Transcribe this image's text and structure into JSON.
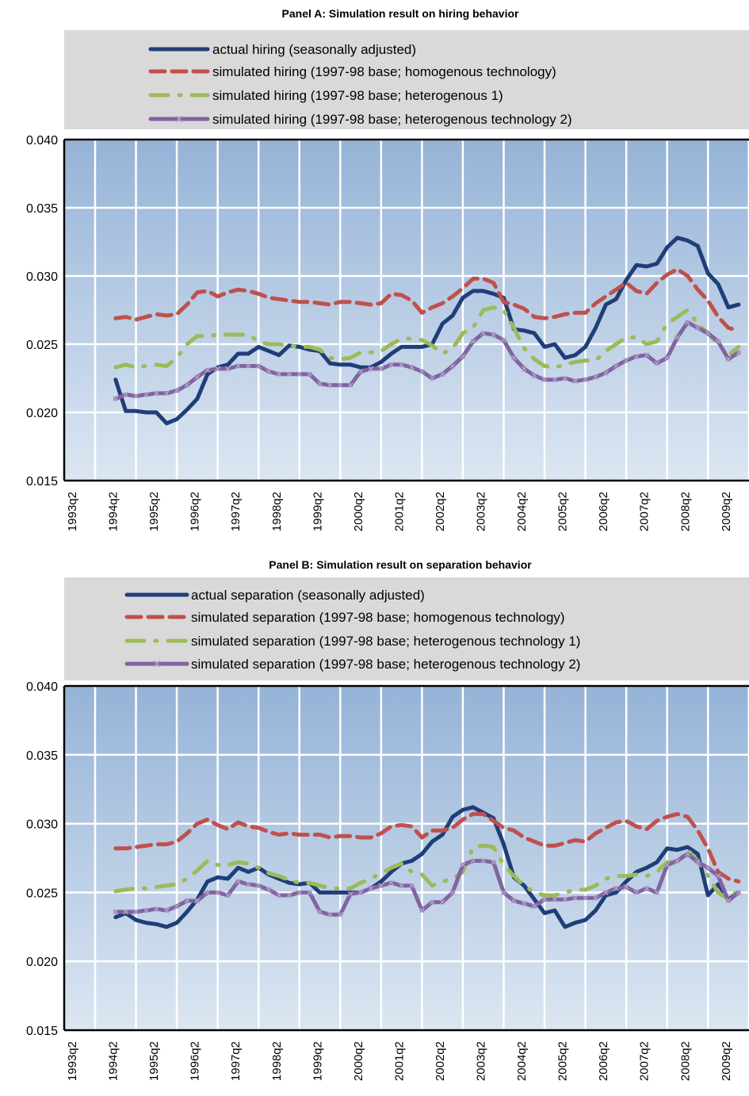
{
  "colors": {
    "actual": "#1f3e78",
    "homogenous": "#c0504d",
    "heterogenous1": "#9bbb59",
    "heterogenous2": "#8064a2",
    "legend_bg": "#d9d9d9",
    "plot_bg_top": "#95b3d7",
    "plot_bg_bottom": "#dce6f2"
  },
  "chart_data": [
    {
      "type": "line",
      "title": "Panel A: Simulation result on hiring behavior",
      "legend_position": "top",
      "grid": true,
      "ylim": [
        0.015,
        0.04
      ],
      "yticks": [
        "0.040",
        "0.035",
        "0.030",
        "0.025",
        "0.020",
        "0.015"
      ],
      "x_labels": [
        "1993q2",
        "1994q2",
        "1995q2",
        "1996q2",
        "1997q2",
        "1998q2",
        "1999q2",
        "2000q2",
        "2001q2",
        "2002q2",
        "2003q2",
        "2004q2",
        "2005q2",
        "2006q2",
        "2007q2",
        "2008q2",
        "2009q2"
      ],
      "x_start": "1993q4",
      "series": [
        {
          "name": "actual hiring (seasonally adjusted)",
          "style": "solid",
          "values": [
            0.0224,
            0.0201,
            0.0201,
            0.02,
            0.02,
            0.0192,
            0.0195,
            0.0202,
            0.021,
            0.0228,
            0.0233,
            0.0235,
            0.0243,
            0.0243,
            0.0248,
            0.0245,
            0.0242,
            0.0249,
            0.0248,
            0.0246,
            0.0245,
            0.0236,
            0.0235,
            0.0235,
            0.0233,
            0.0233,
            0.0237,
            0.0243,
            0.0248,
            0.0248,
            0.0248,
            0.025,
            0.0265,
            0.0271,
            0.0284,
            0.0289,
            0.0289,
            0.0287,
            0.0284,
            0.0261,
            0.026,
            0.0258,
            0.0248,
            0.025,
            0.024,
            0.0242,
            0.0248,
            0.0262,
            0.0279,
            0.0283,
            0.0297,
            0.0308,
            0.0307,
            0.0309,
            0.0321,
            0.0328,
            0.0326,
            0.0322,
            0.0302,
            0.0294,
            0.0277,
            0.0279
          ]
        },
        {
          "name": "simulated hiring (1997-98 base; homogenous technology)",
          "style": "dashed",
          "values": [
            0.0269,
            0.027,
            0.0268,
            0.027,
            0.0272,
            0.0271,
            0.0272,
            0.0279,
            0.0288,
            0.0289,
            0.0285,
            0.0288,
            0.029,
            0.0289,
            0.0287,
            0.0284,
            0.0283,
            0.0282,
            0.0281,
            0.0281,
            0.028,
            0.0279,
            0.0281,
            0.0281,
            0.028,
            0.0279,
            0.028,
            0.0287,
            0.0286,
            0.0282,
            0.0273,
            0.0277,
            0.028,
            0.0285,
            0.0291,
            0.0298,
            0.0298,
            0.0295,
            0.0281,
            0.0279,
            0.0276,
            0.027,
            0.0269,
            0.027,
            0.0272,
            0.0273,
            0.0273,
            0.028,
            0.0285,
            0.029,
            0.0295,
            0.0289,
            0.0287,
            0.0295,
            0.0301,
            0.0305,
            0.03,
            0.029,
            0.0282,
            0.027,
            0.0262,
            0.026
          ]
        },
        {
          "name": "simulated hiring (1997-98 base; heterogenous 1)",
          "style": "dashdot",
          "values": [
            0.0233,
            0.0235,
            0.0233,
            0.0234,
            0.0235,
            0.0234,
            0.024,
            0.025,
            0.0256,
            0.0256,
            0.0257,
            0.0257,
            0.0257,
            0.0257,
            0.0252,
            0.025,
            0.025,
            0.0249,
            0.0248,
            0.0248,
            0.0246,
            0.024,
            0.0239,
            0.024,
            0.0244,
            0.0244,
            0.0245,
            0.025,
            0.0254,
            0.0254,
            0.0253,
            0.0249,
            0.0243,
            0.0247,
            0.0258,
            0.0262,
            0.0275,
            0.0277,
            0.0275,
            0.0262,
            0.0247,
            0.0239,
            0.0234,
            0.0233,
            0.0235,
            0.0237,
            0.0238,
            0.0238,
            0.0245,
            0.025,
            0.0255,
            0.0255,
            0.025,
            0.0252,
            0.0265,
            0.027,
            0.0275,
            0.0265,
            0.0258,
            0.025,
            0.0242,
            0.0248
          ]
        },
        {
          "name": "simulated hiring (1997-98 base; heterogenous technology 2)",
          "style": "xmarker",
          "values": [
            0.021,
            0.0213,
            0.0212,
            0.0213,
            0.0214,
            0.0214,
            0.0216,
            0.022,
            0.0226,
            0.0231,
            0.0232,
            0.0232,
            0.0234,
            0.0234,
            0.0234,
            0.023,
            0.0228,
            0.0228,
            0.0228,
            0.0228,
            0.0221,
            0.022,
            0.022,
            0.022,
            0.023,
            0.0232,
            0.0232,
            0.0235,
            0.0235,
            0.0233,
            0.023,
            0.0225,
            0.0228,
            0.0234,
            0.0241,
            0.0252,
            0.0258,
            0.0257,
            0.0253,
            0.024,
            0.0232,
            0.0227,
            0.0224,
            0.0224,
            0.0225,
            0.0223,
            0.0224,
            0.0226,
            0.0229,
            0.0234,
            0.0238,
            0.0241,
            0.0242,
            0.0236,
            0.024,
            0.0255,
            0.0266,
            0.0262,
            0.0258,
            0.0252,
            0.0239,
            0.0244
          ]
        }
      ]
    },
    {
      "type": "line",
      "title": "Panel B: Simulation result on separation behavior",
      "legend_position": "top",
      "grid": true,
      "ylim": [
        0.015,
        0.04
      ],
      "yticks": [
        "0.040",
        "0.035",
        "0.030",
        "0.025",
        "0.020",
        "0.015"
      ],
      "x_labels": [
        "1993q2",
        "1994q2",
        "1995q2",
        "1996q2",
        "1997q2",
        "1998q2",
        "1999q2",
        "2000q2",
        "2001q2",
        "2002q2",
        "2003q2",
        "2004q2",
        "2005q2",
        "2006q2",
        "2007q2",
        "2008q2",
        "2009q2"
      ],
      "x_start": "1993q4",
      "series": [
        {
          "name": "actual separation (seasonally adjusted)",
          "style": "solid",
          "values": [
            0.0232,
            0.0235,
            0.023,
            0.0228,
            0.0227,
            0.0225,
            0.0228,
            0.0236,
            0.0245,
            0.0258,
            0.0261,
            0.026,
            0.0268,
            0.0265,
            0.0268,
            0.0263,
            0.026,
            0.0257,
            0.0256,
            0.0257,
            0.025,
            0.025,
            0.025,
            0.025,
            0.025,
            0.0253,
            0.0258,
            0.0265,
            0.0271,
            0.0273,
            0.0278,
            0.0287,
            0.0292,
            0.0305,
            0.031,
            0.0312,
            0.0308,
            0.0304,
            0.0285,
            0.0261,
            0.0255,
            0.0245,
            0.0235,
            0.0237,
            0.0225,
            0.0228,
            0.023,
            0.0237,
            0.0248,
            0.025,
            0.0258,
            0.0265,
            0.0268,
            0.0272,
            0.0282,
            0.0281,
            0.0283,
            0.0278,
            0.0248,
            0.0256,
            0.0245,
            0.025
          ]
        },
        {
          "name": "simulated separation (1997-98 base; homogenous technology)",
          "style": "dashed",
          "values": [
            0.0282,
            0.0282,
            0.0283,
            0.0284,
            0.0285,
            0.0285,
            0.0287,
            0.0293,
            0.03,
            0.0303,
            0.0299,
            0.0296,
            0.0301,
            0.0298,
            0.0297,
            0.0294,
            0.0292,
            0.0293,
            0.0292,
            0.0292,
            0.0292,
            0.029,
            0.0291,
            0.0291,
            0.029,
            0.029,
            0.0293,
            0.0298,
            0.0299,
            0.0298,
            0.029,
            0.0295,
            0.0295,
            0.0297,
            0.0303,
            0.0307,
            0.0307,
            0.0302,
            0.0297,
            0.0295,
            0.029,
            0.0287,
            0.0284,
            0.0284,
            0.0286,
            0.0288,
            0.0287,
            0.0293,
            0.0297,
            0.0301,
            0.0302,
            0.0298,
            0.0296,
            0.0302,
            0.0305,
            0.0307,
            0.0305,
            0.0295,
            0.0282,
            0.0265,
            0.026,
            0.0258
          ]
        },
        {
          "name": "simulated separation (1997-98 base; heterogenous technology 1)",
          "style": "dashdot",
          "values": [
            0.0251,
            0.0252,
            0.0253,
            0.0253,
            0.0254,
            0.0255,
            0.0256,
            0.026,
            0.0266,
            0.0273,
            0.027,
            0.027,
            0.0272,
            0.0271,
            0.0268,
            0.0264,
            0.0262,
            0.0259,
            0.0257,
            0.0257,
            0.0255,
            0.0253,
            0.0253,
            0.0253,
            0.0257,
            0.026,
            0.0264,
            0.0268,
            0.0271,
            0.0265,
            0.0263,
            0.0255,
            0.0258,
            0.026,
            0.0265,
            0.0283,
            0.0284,
            0.0283,
            0.027,
            0.0262,
            0.0255,
            0.025,
            0.0248,
            0.0248,
            0.025,
            0.0252,
            0.0252,
            0.0255,
            0.026,
            0.0262,
            0.0262,
            0.0263,
            0.0262,
            0.0265,
            0.0272,
            0.0272,
            0.0281,
            0.0273,
            0.0262,
            0.025,
            0.0245,
            0.0252
          ]
        },
        {
          "name": "simulated separation (1997-98 base; heterogenous technology 2)",
          "style": "xmarker",
          "values": [
            0.0236,
            0.0236,
            0.0236,
            0.0237,
            0.0238,
            0.0237,
            0.024,
            0.0244,
            0.0244,
            0.025,
            0.025,
            0.0248,
            0.0258,
            0.0256,
            0.0255,
            0.0252,
            0.0248,
            0.0248,
            0.025,
            0.025,
            0.0236,
            0.0234,
            0.0234,
            0.0249,
            0.025,
            0.0253,
            0.0255,
            0.0257,
            0.0255,
            0.0255,
            0.0237,
            0.0243,
            0.0243,
            0.025,
            0.027,
            0.0273,
            0.0273,
            0.0272,
            0.025,
            0.0244,
            0.0242,
            0.024,
            0.0245,
            0.0245,
            0.0245,
            0.0246,
            0.0246,
            0.0246,
            0.025,
            0.0253,
            0.0254,
            0.025,
            0.0253,
            0.025,
            0.027,
            0.0273,
            0.0278,
            0.0272,
            0.0268,
            0.0262,
            0.0244,
            0.025
          ]
        }
      ]
    }
  ]
}
